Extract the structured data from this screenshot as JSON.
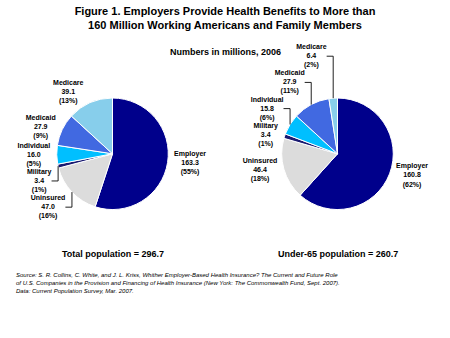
{
  "title": "Figure 1. Employers Provide Health Benefits to More than\n160 Million Working Americans and Family Members",
  "subtitle": "Numbers in millions, 2006",
  "annotations": [
    "Source: S. R. Collins, C. White, and J. L. Kriss, Whither Employer-Based Health Insurance? The Current and Future Role\nof U.S. Companies in the Provision and Financing of Health Insurance (New York: The Commonwealth Fund, Sept. 2007).\nData: Current Population Survey, Mar. 2007."
  ],
  "chart_data": [
    {
      "type": "pie",
      "title": "Total population = 296.7",
      "categories": [
        "Employer",
        "Uninsured",
        "Military",
        "Individual",
        "Medicaid",
        "Medicare"
      ],
      "values": [
        163.3,
        47.0,
        3.4,
        16.0,
        27.9,
        39.1
      ],
      "value_labels": [
        "163.3\n(55%)",
        "47.0\n(16%)",
        "3.4\n(1%)",
        "16.0\n(5%)",
        "27.9\n(9%)",
        "39.1\n(13%)"
      ],
      "colors": [
        "#00008B",
        "#DCDCDC",
        "#191970",
        "#00BFFF",
        "#4169E1",
        "#87CEEB"
      ],
      "data_labels": true
    },
    {
      "type": "pie",
      "title": "Under-65 population = 260.7",
      "categories": [
        "Employer",
        "Uninsured",
        "Military",
        "Individual",
        "Medicaid",
        "Medicare"
      ],
      "values": [
        160.8,
        46.4,
        3.4,
        15.8,
        27.9,
        6.4
      ],
      "value_labels": [
        "160.8\n(62%)",
        "46.4\n(18%)",
        "3.4\n(1%)",
        "15.8\n(6%)",
        "27.9\n(11%)",
        "6.4\n(2%)"
      ],
      "colors": [
        "#00008B",
        "#DCDCDC",
        "#191970",
        "#00BFFF",
        "#4169E1",
        "#87CEEB"
      ],
      "data_labels": true
    }
  ]
}
